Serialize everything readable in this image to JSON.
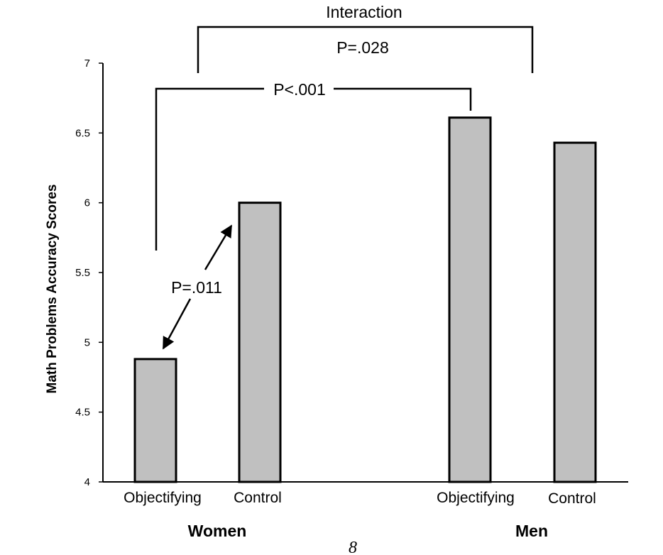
{
  "chart_data": {
    "type": "bar",
    "ylabel": "Math Problems Accuracy Scores",
    "ylim": [
      4,
      7
    ],
    "yticks": [
      "4",
      "4.5",
      "5",
      "5.5",
      "6",
      "6.5",
      "7"
    ],
    "grid": false,
    "groups": [
      {
        "label": "Women",
        "bars": [
          {
            "label": "Objectifying",
            "value": 4.88
          },
          {
            "label": "Control",
            "value": 6.0
          }
        ]
      },
      {
        "label": "Men",
        "bars": [
          {
            "label": "Objectifying",
            "value": 6.61
          },
          {
            "label": "Control",
            "value": 6.43
          }
        ]
      }
    ],
    "bar_color": "#c0c0c0",
    "annotations": {
      "interaction_title": "Interaction",
      "interaction_p": "P=.028",
      "objectifying_p": "P<.001",
      "women_p": "P=.011"
    }
  },
  "page_number": "8"
}
